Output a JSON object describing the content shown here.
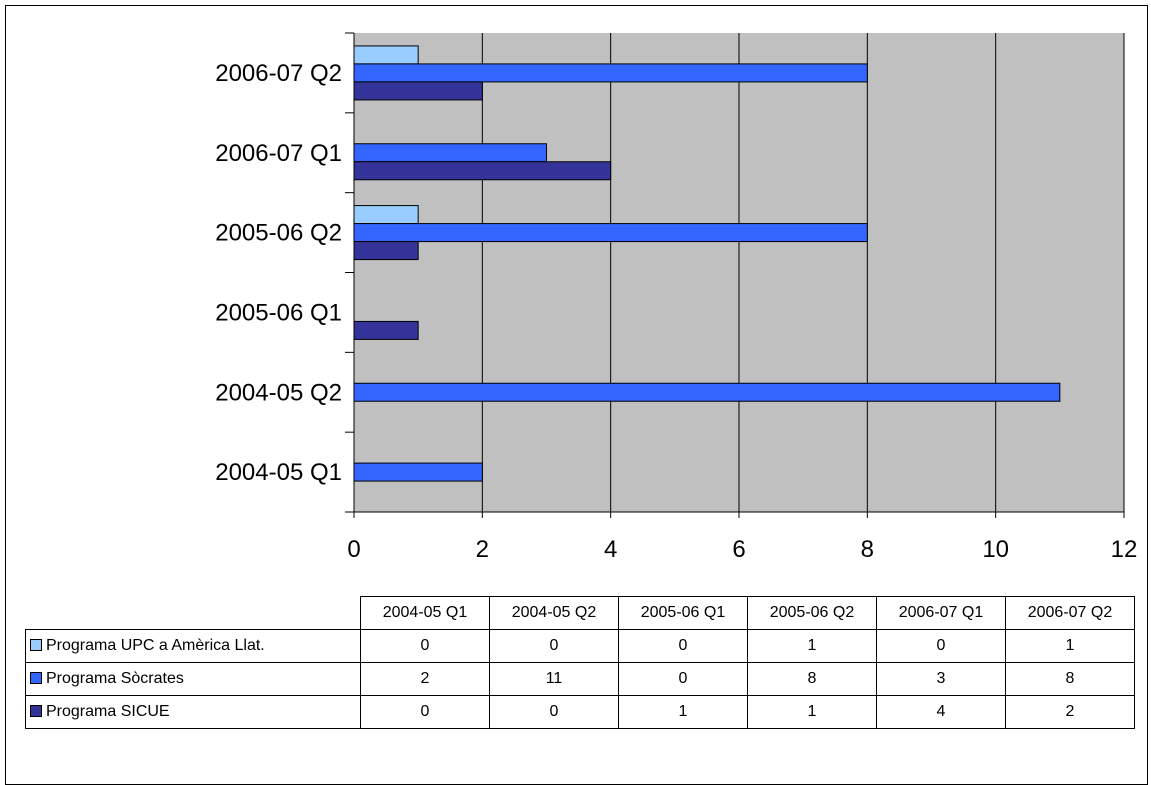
{
  "chart_data": {
    "type": "bar",
    "orientation": "horizontal",
    "categories": [
      "2004-05 Q1",
      "2004-05 Q2",
      "2005-06 Q1",
      "2005-06 Q2",
      "2006-07 Q1",
      "2006-07 Q2"
    ],
    "series": [
      {
        "name": "Programa UPC a Amèrica Llat.",
        "color": "#99ccff",
        "values": [
          0,
          0,
          0,
          1,
          0,
          1
        ]
      },
      {
        "name": "Programa Sòcrates",
        "color": "#3366ff",
        "values": [
          2,
          11,
          0,
          8,
          3,
          8
        ]
      },
      {
        "name": "Programa SICUE",
        "color": "#333399",
        "values": [
          0,
          0,
          1,
          1,
          4,
          2
        ]
      }
    ],
    "x_ticks": [
      "0",
      "2",
      "4",
      "6",
      "8",
      "10",
      "12"
    ],
    "xlim": [
      0,
      12
    ],
    "grid": true,
    "plot_background": "#c0c0c0",
    "data_table": true
  },
  "table": {
    "headers": [
      "2004-05 Q1",
      "2004-05 Q2",
      "2005-06 Q1",
      "2005-06 Q2",
      "2006-07 Q1",
      "2006-07 Q2"
    ],
    "rows": [
      {
        "name": "Programa UPC a Amèrica Llat.",
        "values": [
          "0",
          "0",
          "0",
          "1",
          "0",
          "1"
        ]
      },
      {
        "name": "Programa Sòcrates",
        "values": [
          "2",
          "11",
          "0",
          "8",
          "3",
          "8"
        ]
      },
      {
        "name": "Programa SICUE",
        "values": [
          "0",
          "0",
          "1",
          "1",
          "4",
          "2"
        ]
      }
    ]
  }
}
